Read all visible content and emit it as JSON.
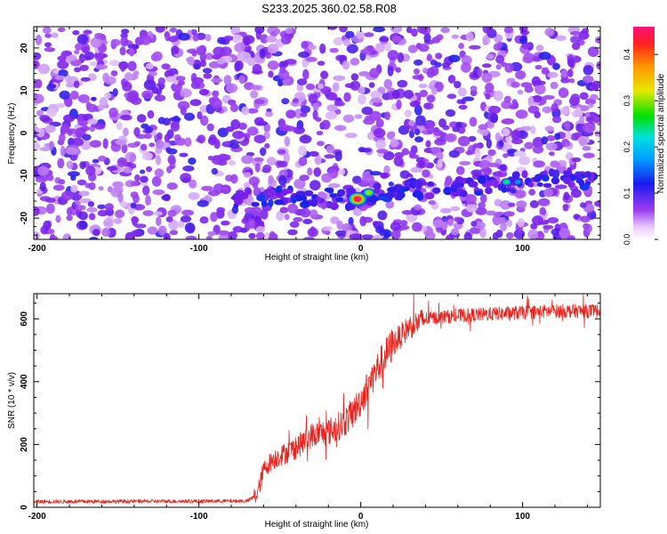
{
  "title": "S233.2025.360.02.58.R08",
  "chart_data": [
    {
      "type": "heatmap",
      "xlabel": "Height of straight line (km)",
      "ylabel": "Frequency (Hz)",
      "xlim": [
        -202,
        148
      ],
      "ylim": [
        -25,
        25
      ],
      "x_ticks": [
        -200,
        -100,
        0,
        100
      ],
      "y_ticks": [
        -20,
        -10,
        0,
        10,
        20
      ],
      "colorbar": {
        "label": "Normalized spectral amplitude",
        "range": [
          0,
          0.46
        ],
        "ticks": [
          0.0,
          0.1,
          0.2,
          0.3,
          0.4
        ],
        "tick_labels": [
          "0.0",
          "0.1",
          "0.2",
          "0.3",
          "0.4"
        ]
      },
      "ridge": {
        "description_x": [
          -75,
          -40,
          -10,
          0,
          20,
          60,
          100,
          148
        ],
        "frequency_hz": [
          -15.5,
          -15,
          -15.5,
          -15,
          -13.5,
          -12.5,
          -11.5,
          -10.5
        ]
      },
      "peaks": [
        {
          "x": -2,
          "y": -15.5,
          "amplitude": 0.46
        },
        {
          "x": 5,
          "y": -14,
          "amplitude": 0.3
        },
        {
          "x": 90,
          "y": -11.5,
          "amplitude": 0.28
        },
        {
          "x": 97,
          "y": -11.5,
          "amplitude": 0.22
        },
        {
          "x": -12,
          "y": -14,
          "amplitude": 0.14
        },
        {
          "x": -165,
          "y": 8,
          "amplitude": 0.14
        },
        {
          "x": -190,
          "y": 11,
          "amplitude": 0.12
        }
      ]
    },
    {
      "type": "line",
      "xlabel": "Height of straight line (km)",
      "ylabel": "SNR (10 * v/v)",
      "xlim": [
        -202,
        148
      ],
      "ylim": [
        0,
        680
      ],
      "x_ticks": [
        -200,
        -100,
        0,
        100
      ],
      "y_ticks": [
        0,
        200,
        400,
        600
      ],
      "series": [
        {
          "color": "#e8231e",
          "x": [
            -202,
            -70,
            -64,
            -60,
            -55,
            -40,
            -30,
            -20,
            -10,
            -5,
            0,
            10,
            20,
            30,
            40,
            50,
            60,
            80,
            100,
            120,
            148
          ],
          "y": [
            18,
            20,
            40,
            120,
            150,
            190,
            230,
            240,
            270,
            300,
            340,
            440,
            520,
            575,
            600,
            605,
            610,
            615,
            620,
            625,
            625
          ]
        }
      ]
    }
  ]
}
